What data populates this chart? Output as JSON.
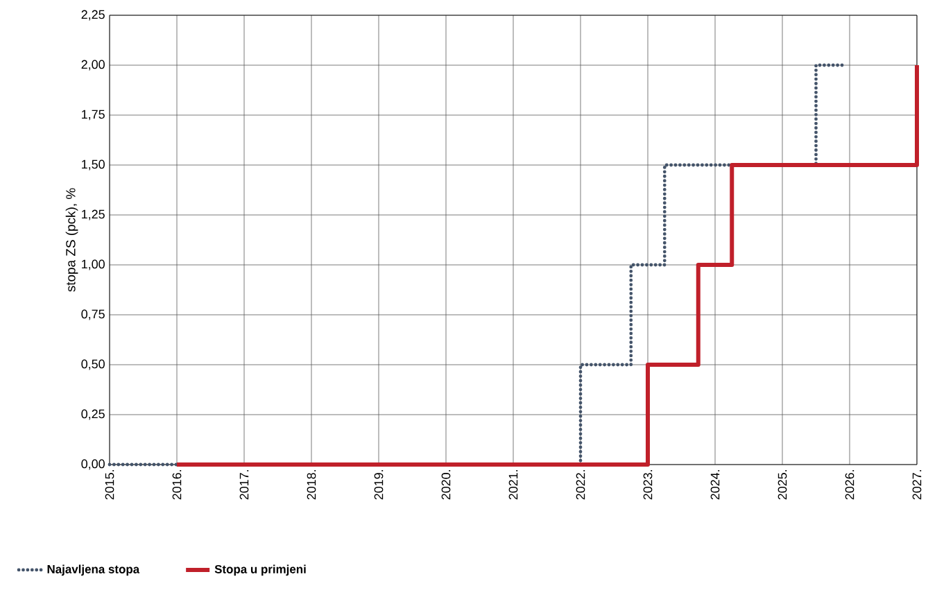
{
  "chart_data": {
    "type": "step",
    "ylabel": "stopa ZS (pck), %",
    "series": [
      {
        "name": "Najavljena stopa",
        "color": "#44546a",
        "line_style": "dotted",
        "x": [
          2015,
          2022,
          2022.75,
          2023.25,
          2025.5,
          2025.9
        ],
        "values": [
          0,
          0.5,
          1.0,
          1.5,
          2.0,
          2.0
        ]
      },
      {
        "name": "Stopa u primjeni",
        "color": "#c0202a",
        "line_style": "solid",
        "x": [
          2016,
          2023,
          2023.75,
          2024.25,
          2027
        ],
        "values": [
          0,
          0.5,
          1.0,
          1.5,
          2.0
        ]
      }
    ],
    "xlim": [
      2015,
      2027
    ],
    "xticks": [
      {
        "value": 2015,
        "label": "2015."
      },
      {
        "value": 2016,
        "label": "2016."
      },
      {
        "value": 2017,
        "label": "2017."
      },
      {
        "value": 2018,
        "label": "2018."
      },
      {
        "value": 2019,
        "label": "2019."
      },
      {
        "value": 2020,
        "label": "2020."
      },
      {
        "value": 2021,
        "label": "2021."
      },
      {
        "value": 2022,
        "label": "2022."
      },
      {
        "value": 2023,
        "label": "2023."
      },
      {
        "value": 2024,
        "label": "2024."
      },
      {
        "value": 2025,
        "label": "2025."
      },
      {
        "value": 2026,
        "label": "2026."
      },
      {
        "value": 2027,
        "label": "2027."
      }
    ],
    "ylim": [
      0,
      2.25
    ],
    "yticks": [
      {
        "value": 0,
        "label": "0,00"
      },
      {
        "value": 0.25,
        "label": "0,25"
      },
      {
        "value": 0.5,
        "label": "0,50"
      },
      {
        "value": 0.75,
        "label": "0,75"
      },
      {
        "value": 1.0,
        "label": "1,00"
      },
      {
        "value": 1.25,
        "label": "1,25"
      },
      {
        "value": 1.5,
        "label": "1,50"
      },
      {
        "value": 1.75,
        "label": "1,75"
      },
      {
        "value": 2.0,
        "label": "2,00"
      },
      {
        "value": 2.25,
        "label": "2,25"
      }
    ],
    "grid": true,
    "legend": "bottom left",
    "marker": "none"
  }
}
